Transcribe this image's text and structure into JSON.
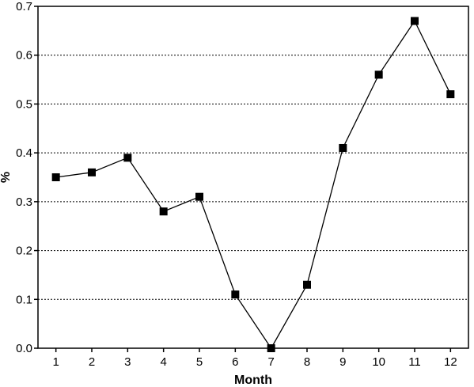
{
  "chart_data": {
    "type": "line",
    "title": "",
    "xlabel": "Month",
    "ylabel": "%",
    "x": [
      1,
      2,
      3,
      4,
      5,
      6,
      7,
      8,
      9,
      10,
      11,
      12
    ],
    "series": [
      {
        "values": [
          0.35,
          0.36,
          0.39,
          0.28,
          0.31,
          0.11,
          0.0,
          0.13,
          0.41,
          0.56,
          0.67,
          0.52
        ]
      }
    ],
    "xlim": [
      0.5,
      12.5
    ],
    "ylim": [
      0.0,
      0.7
    ],
    "xticks": [
      "1",
      "2",
      "3",
      "4",
      "5",
      "6",
      "7",
      "8",
      "9",
      "10",
      "11",
      "12"
    ],
    "yticks": [
      "0.0",
      "0.1",
      "0.2",
      "0.3",
      "0.4",
      "0.5",
      "0.6",
      "0.7"
    ],
    "grid": "horizontal dotted",
    "marker": "square",
    "line_color": "#000000"
  }
}
